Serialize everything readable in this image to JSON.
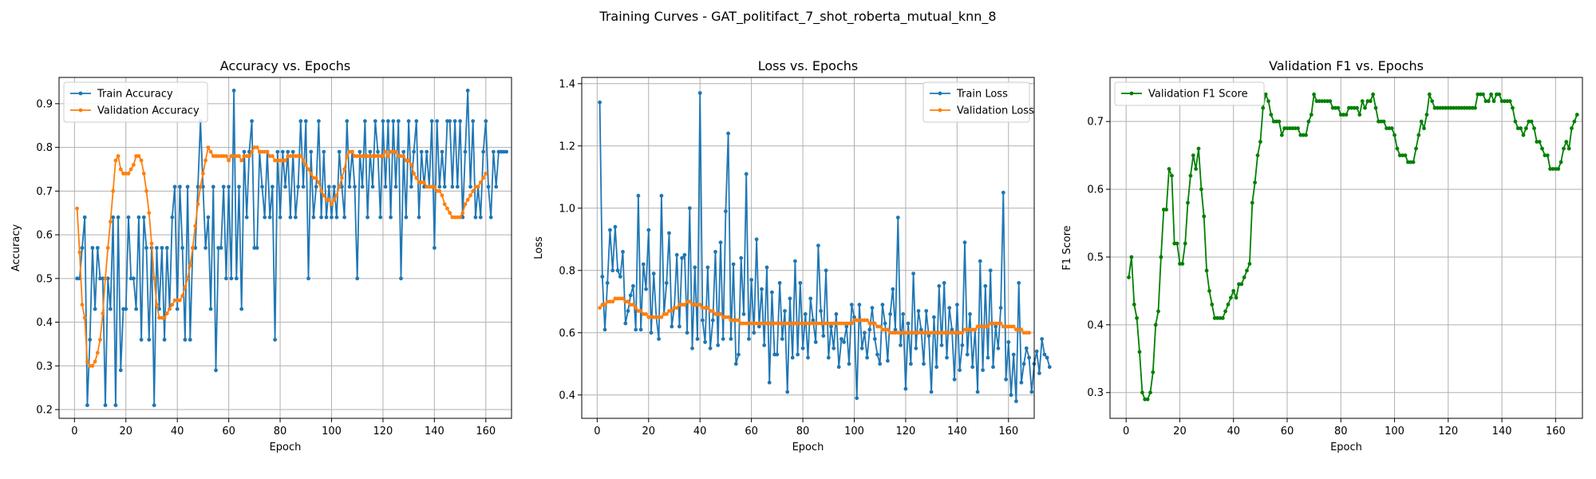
{
  "suptitle": "Training Curves - GAT_politifact_7_shot_roberta_mutual_knn_8",
  "colors": {
    "train": "#1f77b4",
    "val": "#ff7f0e",
    "f1": "#008000",
    "grid": "#b0b0b0"
  },
  "chart_data": [
    {
      "type": "line",
      "title": "Accuracy vs. Epochs",
      "xlabel": "Epoch",
      "ylabel": "Accuracy",
      "xlim": [
        -6,
        170
      ],
      "ylim": [
        0.18,
        0.96
      ],
      "xticks": [
        0,
        20,
        40,
        60,
        80,
        100,
        120,
        140,
        160
      ],
      "yticks": [
        0.2,
        0.3,
        0.4,
        0.5,
        0.6,
        0.7,
        0.8,
        0.9
      ],
      "grid": true,
      "legend": "upper-left",
      "series": [
        {
          "name": "Train Accuracy",
          "color": "#1f77b4",
          "values": [
            0.5,
            0.5,
            0.57,
            0.64,
            0.21,
            0.36,
            0.57,
            0.43,
            0.57,
            0.5,
            0.5,
            0.21,
            0.5,
            0.43,
            0.64,
            0.21,
            0.64,
            0.29,
            0.43,
            0.43,
            0.64,
            0.5,
            0.5,
            0.43,
            0.64,
            0.36,
            0.64,
            0.57,
            0.36,
            0.57,
            0.21,
            0.57,
            0.43,
            0.57,
            0.36,
            0.57,
            0.43,
            0.64,
            0.71,
            0.43,
            0.71,
            0.57,
            0.36,
            0.71,
            0.36,
            0.57,
            0.57,
            0.71,
            0.86,
            0.71,
            0.57,
            0.64,
            0.43,
            0.71,
            0.29,
            0.57,
            0.57,
            0.71,
            0.5,
            0.71,
            0.5,
            0.93,
            0.5,
            0.71,
            0.43,
            0.79,
            0.64,
            0.79,
            0.86,
            0.57,
            0.57,
            0.79,
            0.71,
            0.64,
            0.79,
            0.64,
            0.71,
            0.36,
            0.79,
            0.64,
            0.79,
            0.71,
            0.79,
            0.64,
            0.79,
            0.64,
            0.71,
            0.86,
            0.71,
            0.86,
            0.5,
            0.79,
            0.64,
            0.71,
            0.86,
            0.64,
            0.79,
            0.64,
            0.71,
            0.64,
            0.71,
            0.64,
            0.79,
            0.71,
            0.64,
            0.86,
            0.71,
            0.79,
            0.71,
            0.5,
            0.79,
            0.71,
            0.86,
            0.64,
            0.79,
            0.71,
            0.86,
            0.79,
            0.64,
            0.86,
            0.71,
            0.86,
            0.64,
            0.86,
            0.71,
            0.86,
            0.5,
            0.79,
            0.64,
            0.86,
            0.71,
            0.79,
            0.86,
            0.64,
            0.79,
            0.71,
            0.79,
            0.71,
            0.86,
            0.57,
            0.86,
            0.71,
            0.79,
            0.71,
            0.86,
            0.86,
            0.71,
            0.86,
            0.71,
            0.86,
            0.64,
            0.79,
            0.93,
            0.71,
            0.86,
            0.64,
            0.71,
            0.64,
            0.79,
            0.86,
            0.71,
            0.64,
            0.79,
            0.71,
            0.79,
            0.79,
            0.79,
            0.79
          ]
        },
        {
          "name": "Validation Accuracy",
          "color": "#ff7f0e",
          "values": [
            0.66,
            0.56,
            0.44,
            0.41,
            0.31,
            0.3,
            0.3,
            0.31,
            0.33,
            0.36,
            0.42,
            0.5,
            0.57,
            0.63,
            0.7,
            0.77,
            0.78,
            0.75,
            0.74,
            0.74,
            0.74,
            0.75,
            0.76,
            0.78,
            0.78,
            0.77,
            0.74,
            0.7,
            0.65,
            0.58,
            0.5,
            0.44,
            0.41,
            0.41,
            0.41,
            0.42,
            0.43,
            0.44,
            0.45,
            0.45,
            0.45,
            0.46,
            0.48,
            0.5,
            0.53,
            0.57,
            0.62,
            0.67,
            0.71,
            0.74,
            0.77,
            0.8,
            0.79,
            0.78,
            0.78,
            0.78,
            0.78,
            0.78,
            0.78,
            0.77,
            0.78,
            0.78,
            0.78,
            0.78,
            0.77,
            0.78,
            0.78,
            0.78,
            0.79,
            0.8,
            0.8,
            0.79,
            0.79,
            0.79,
            0.79,
            0.78,
            0.78,
            0.77,
            0.77,
            0.77,
            0.77,
            0.77,
            0.78,
            0.78,
            0.78,
            0.78,
            0.78,
            0.78,
            0.77,
            0.76,
            0.75,
            0.74,
            0.73,
            0.73,
            0.72,
            0.7,
            0.69,
            0.68,
            0.68,
            0.67,
            0.68,
            0.69,
            0.71,
            0.73,
            0.75,
            0.78,
            0.79,
            0.79,
            0.78,
            0.78,
            0.78,
            0.78,
            0.78,
            0.78,
            0.78,
            0.78,
            0.78,
            0.78,
            0.78,
            0.78,
            0.79,
            0.78,
            0.79,
            0.79,
            0.79,
            0.78,
            0.78,
            0.78,
            0.77,
            0.77,
            0.76,
            0.74,
            0.73,
            0.72,
            0.72,
            0.72,
            0.71,
            0.71,
            0.71,
            0.71,
            0.7,
            0.7,
            0.69,
            0.67,
            0.66,
            0.65,
            0.64,
            0.64,
            0.64,
            0.64,
            0.65,
            0.67,
            0.68,
            0.69,
            0.7,
            0.71,
            0.71,
            0.72,
            0.73,
            0.74
          ]
        }
      ]
    },
    {
      "type": "line",
      "title": "Loss vs. Epochs",
      "xlabel": "Epoch",
      "ylabel": "Loss",
      "xlim": [
        -6,
        170
      ],
      "ylim": [
        0.325,
        1.42
      ],
      "xticks": [
        0,
        20,
        40,
        60,
        80,
        100,
        120,
        140,
        160
      ],
      "yticks": [
        0.4,
        0.6,
        0.8,
        1.0,
        1.2,
        1.4
      ],
      "grid": true,
      "legend": "upper-right",
      "series": [
        {
          "name": "Train Loss",
          "color": "#1f77b4",
          "values": [
            1.34,
            0.78,
            0.61,
            0.76,
            0.93,
            0.8,
            0.94,
            0.8,
            0.78,
            0.86,
            0.63,
            0.67,
            0.72,
            0.75,
            0.61,
            1.04,
            0.61,
            0.82,
            0.74,
            0.93,
            0.6,
            0.79,
            0.65,
            0.58,
            1.04,
            0.66,
            0.76,
            0.92,
            0.62,
            0.68,
            0.85,
            0.62,
            0.84,
            0.85,
            0.6,
            1.0,
            0.55,
            0.81,
            0.58,
            1.37,
            0.64,
            0.57,
            0.81,
            0.55,
            0.64,
            0.86,
            0.56,
            0.89,
            0.58,
            0.99,
            1.24,
            0.58,
            0.82,
            0.5,
            0.53,
            0.84,
            0.66,
            1.11,
            0.58,
            0.77,
            0.6,
            0.9,
            0.62,
            0.74,
            0.56,
            0.81,
            0.44,
            0.73,
            0.53,
            0.53,
            0.76,
            0.58,
            0.67,
            0.41,
            0.71,
            0.52,
            0.83,
            0.53,
            0.76,
            0.55,
            0.66,
            0.52,
            0.71,
            0.64,
            0.57,
            0.88,
            0.67,
            0.59,
            0.8,
            0.52,
            0.62,
            0.55,
            0.66,
            0.49,
            0.58,
            0.57,
            0.62,
            0.5,
            0.69,
            0.65,
            0.39,
            0.69,
            0.55,
            0.6,
            0.52,
            0.61,
            0.68,
            0.58,
            0.53,
            0.5,
            0.69,
            0.63,
            0.51,
            0.66,
            0.74,
            0.61,
            0.97,
            0.56,
            0.66,
            0.42,
            0.63,
            0.5,
            0.79,
            0.55,
            0.67,
            0.61,
            0.5,
            0.67,
            0.59,
            0.41,
            0.65,
            0.49,
            0.75,
            0.56,
            0.76,
            0.52,
            0.68,
            0.61,
            0.45,
            0.69,
            0.48,
            0.56,
            0.89,
            0.53,
            0.66,
            0.49,
            0.61,
            0.41,
            0.83,
            0.48,
            0.75,
            0.52,
            0.8,
            0.49,
            0.62,
            0.55,
            0.68,
            1.05,
            0.45,
            0.57,
            0.4,
            0.53,
            0.38,
            0.76,
            0.44,
            0.5,
            0.55,
            0.52,
            0.41,
            0.5,
            0.54,
            0.47,
            0.58,
            0.53,
            0.52,
            0.49
          ]
        },
        {
          "name": "Validation Loss",
          "color": "#ff7f0e",
          "values": [
            0.68,
            0.69,
            0.69,
            0.7,
            0.7,
            0.7,
            0.71,
            0.71,
            0.71,
            0.71,
            0.7,
            0.7,
            0.69,
            0.69,
            0.68,
            0.67,
            0.67,
            0.66,
            0.66,
            0.65,
            0.65,
            0.65,
            0.65,
            0.65,
            0.65,
            0.66,
            0.66,
            0.67,
            0.67,
            0.68,
            0.68,
            0.69,
            0.69,
            0.69,
            0.7,
            0.7,
            0.69,
            0.69,
            0.69,
            0.69,
            0.68,
            0.68,
            0.68,
            0.67,
            0.67,
            0.66,
            0.66,
            0.66,
            0.65,
            0.65,
            0.65,
            0.64,
            0.64,
            0.64,
            0.64,
            0.63,
            0.63,
            0.63,
            0.63,
            0.63,
            0.63,
            0.63,
            0.63,
            0.63,
            0.63,
            0.63,
            0.63,
            0.63,
            0.63,
            0.63,
            0.63,
            0.63,
            0.63,
            0.63,
            0.63,
            0.63,
            0.63,
            0.63,
            0.63,
            0.63,
            0.63,
            0.63,
            0.63,
            0.63,
            0.63,
            0.63,
            0.63,
            0.63,
            0.63,
            0.63,
            0.63,
            0.63,
            0.63,
            0.63,
            0.63,
            0.63,
            0.63,
            0.63,
            0.63,
            0.64,
            0.64,
            0.64,
            0.64,
            0.64,
            0.64,
            0.63,
            0.63,
            0.63,
            0.62,
            0.62,
            0.61,
            0.61,
            0.61,
            0.6,
            0.6,
            0.6,
            0.6,
            0.6,
            0.6,
            0.6,
            0.6,
            0.6,
            0.6,
            0.6,
            0.6,
            0.6,
            0.6,
            0.6,
            0.6,
            0.6,
            0.6,
            0.6,
            0.6,
            0.6,
            0.6,
            0.6,
            0.6,
            0.6,
            0.6,
            0.6,
            0.6,
            0.6,
            0.61,
            0.61,
            0.61,
            0.61,
            0.61,
            0.62,
            0.62,
            0.62,
            0.62,
            0.62,
            0.63,
            0.63,
            0.63,
            0.63,
            0.63,
            0.62,
            0.62,
            0.62,
            0.62,
            0.62,
            0.61,
            0.61,
            0.61,
            0.6,
            0.6,
            0.6
          ]
        }
      ]
    },
    {
      "type": "line",
      "title": "Validation F1 vs. Epochs",
      "xlabel": "Epoch",
      "ylabel": "F1 Score",
      "xlim": [
        -6,
        170
      ],
      "ylim": [
        0.262,
        0.765
      ],
      "xticks": [
        0,
        20,
        40,
        60,
        80,
        100,
        120,
        140,
        160
      ],
      "yticks": [
        0.3,
        0.4,
        0.5,
        0.6,
        0.7
      ],
      "grid": true,
      "legend": "upper-left",
      "series": [
        {
          "name": "Validation F1 Score",
          "color": "#008000",
          "values": [
            0.47,
            0.5,
            0.43,
            0.41,
            0.36,
            0.3,
            0.29,
            0.29,
            0.3,
            0.33,
            0.4,
            0.42,
            0.5,
            0.57,
            0.57,
            0.63,
            0.62,
            0.52,
            0.52,
            0.49,
            0.49,
            0.52,
            0.58,
            0.62,
            0.65,
            0.63,
            0.66,
            0.6,
            0.56,
            0.48,
            0.45,
            0.43,
            0.41,
            0.41,
            0.41,
            0.41,
            0.42,
            0.43,
            0.44,
            0.45,
            0.44,
            0.46,
            0.46,
            0.47,
            0.48,
            0.49,
            0.58,
            0.61,
            0.65,
            0.67,
            0.72,
            0.74,
            0.73,
            0.71,
            0.7,
            0.7,
            0.7,
            0.68,
            0.69,
            0.69,
            0.69,
            0.69,
            0.69,
            0.69,
            0.68,
            0.68,
            0.68,
            0.7,
            0.71,
            0.74,
            0.73,
            0.73,
            0.73,
            0.73,
            0.73,
            0.73,
            0.72,
            0.72,
            0.72,
            0.71,
            0.71,
            0.71,
            0.72,
            0.72,
            0.72,
            0.72,
            0.71,
            0.73,
            0.72,
            0.73,
            0.73,
            0.74,
            0.72,
            0.7,
            0.7,
            0.7,
            0.69,
            0.69,
            0.69,
            0.68,
            0.66,
            0.65,
            0.65,
            0.65,
            0.64,
            0.64,
            0.64,
            0.66,
            0.68,
            0.7,
            0.69,
            0.71,
            0.74,
            0.73,
            0.72,
            0.72,
            0.72,
            0.72,
            0.72,
            0.72,
            0.72,
            0.72,
            0.72,
            0.72,
            0.72,
            0.72,
            0.72,
            0.72,
            0.72,
            0.72,
            0.74,
            0.74,
            0.74,
            0.73,
            0.73,
            0.74,
            0.73,
            0.74,
            0.74,
            0.73,
            0.73,
            0.73,
            0.73,
            0.72,
            0.7,
            0.69,
            0.69,
            0.68,
            0.69,
            0.7,
            0.7,
            0.69,
            0.67,
            0.67,
            0.66,
            0.65,
            0.65,
            0.63,
            0.63,
            0.63,
            0.63,
            0.64,
            0.66,
            0.67,
            0.66,
            0.69,
            0.7,
            0.71
          ]
        }
      ]
    }
  ]
}
